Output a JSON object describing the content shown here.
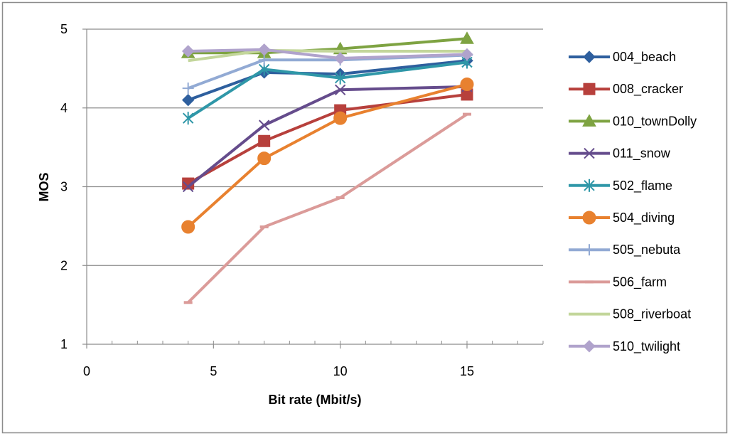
{
  "chart_data": {
    "type": "line",
    "title": "",
    "xlabel": "Bit rate (Mbit/s)",
    "ylabel": "MOS",
    "xlim": [
      0,
      18
    ],
    "ylim": [
      1,
      5
    ],
    "x_ticks": [
      0,
      5,
      10,
      15
    ],
    "x_tick_labels": [
      "0",
      "5",
      "10",
      "15"
    ],
    "y_ticks": [
      1,
      2,
      3,
      4,
      5
    ],
    "y_tick_labels": [
      "1",
      "2",
      "3",
      "4",
      "5"
    ],
    "x_minor_step": 1,
    "grid": "horizontal",
    "legend_position": "right",
    "series": [
      {
        "name": "004_beach",
        "color": "#2E5F9E",
        "marker": "diamond",
        "x": [
          4,
          7,
          10,
          15
        ],
        "y": [
          4.1,
          4.45,
          4.43,
          4.6
        ]
      },
      {
        "name": "008_cracker",
        "color": "#B7403C",
        "marker": "square",
        "x": [
          4,
          7,
          10,
          15
        ],
        "y": [
          3.04,
          3.58,
          3.97,
          4.17
        ]
      },
      {
        "name": "010_townDolly",
        "color": "#7EA342",
        "marker": "triangle",
        "x": [
          4,
          7,
          10,
          15
        ],
        "y": [
          4.7,
          4.7,
          4.75,
          4.88
        ]
      },
      {
        "name": "011_snow",
        "color": "#654C8C",
        "marker": "x",
        "x": [
          4,
          7,
          10,
          15
        ],
        "y": [
          3.0,
          3.78,
          4.23,
          4.27
        ]
      },
      {
        "name": "502_flame",
        "color": "#2F97A8",
        "marker": "star",
        "x": [
          4,
          7,
          10,
          15
        ],
        "y": [
          3.87,
          4.49,
          4.38,
          4.58
        ]
      },
      {
        "name": "504_diving",
        "color": "#E8812F",
        "marker": "circle",
        "x": [
          4,
          7,
          10,
          15
        ],
        "y": [
          2.49,
          3.36,
          3.87,
          4.3
        ]
      },
      {
        "name": "505_nebuta",
        "color": "#92AAD4",
        "marker": "plus",
        "x": [
          4,
          7,
          10,
          15
        ],
        "y": [
          4.25,
          4.61,
          4.61,
          4.67
        ]
      },
      {
        "name": "506_farm",
        "color": "#DB9B99",
        "marker": "dash",
        "x": [
          4,
          7,
          10,
          15
        ],
        "y": [
          1.53,
          2.49,
          2.86,
          3.92
        ]
      },
      {
        "name": "508_riverboat",
        "color": "#C3D69B",
        "marker": "none",
        "x": [
          4,
          7,
          10,
          15
        ],
        "y": [
          4.6,
          4.73,
          4.72,
          4.72
        ]
      },
      {
        "name": "510_twilight",
        "color": "#B0A3CC",
        "marker": "diamond",
        "x": [
          4,
          7,
          10,
          15
        ],
        "y": [
          4.72,
          4.74,
          4.63,
          4.68
        ]
      }
    ]
  }
}
